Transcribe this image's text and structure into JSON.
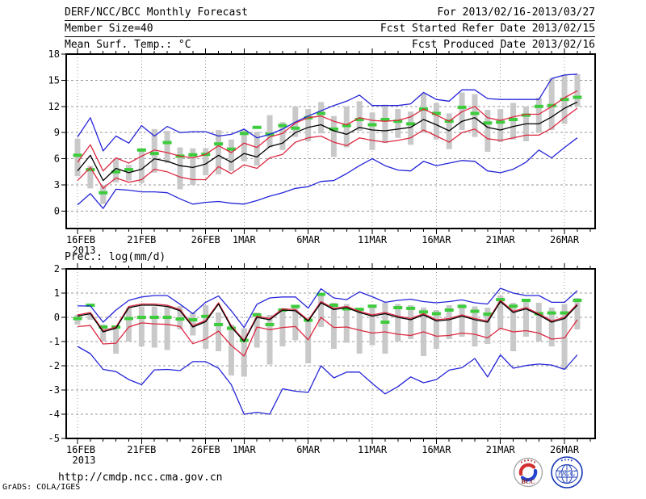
{
  "header": {
    "line1_left": "DERF/NCC/BCC Monthly Forecast",
    "line1_right": "For 2013/02/16-2013/03/27",
    "line2_left": "Member Size=40",
    "line2_right": "Fcst Started Refer Date 2013/02/15",
    "line3_left": "Mean Surf. Temp.: °C",
    "line3_right": "Fcst Produced Date 2013/02/16"
  },
  "footer": {
    "url": "http://cmdp.ncc.cma.gov.cn",
    "credit": "GrADS: COLA/IGES",
    "bcc_label": "BCC",
    "ncc_label": "NCC"
  },
  "colors": {
    "blue": "#2424d8",
    "red": "#dc2840",
    "black": "#000000",
    "green": "#3ccc3c",
    "bar_gray": "#c9c9c9",
    "grid": "#999999",
    "text": "#000000",
    "bcc_dark_red": "#8b1a1a",
    "ncc_blue": "#1536b4"
  },
  "chart_data": [
    {
      "type": "line",
      "title": "Mean Surf. Temp.: °C",
      "ylabel": "°C",
      "ylim": [
        -2,
        18
      ],
      "yticks": [
        0,
        3,
        6,
        9,
        12,
        15,
        18
      ],
      "grid": true,
      "legend_position": "none",
      "n_points": 40,
      "x_tick_labels": [
        "16FEB",
        "21FEB",
        "26FEB",
        "1MAR",
        "6MAR",
        "11MAR",
        "16MAR",
        "21MAR",
        "26MAR"
      ],
      "x_tick_days": [
        0,
        5,
        10,
        13,
        18,
        23,
        28,
        33,
        38
      ],
      "x_year_label": "2013",
      "series": [
        {
          "name": "ensemble_max",
          "color": "blue",
          "values": [
            8.5,
            10.7,
            6.9,
            8.6,
            7.8,
            9.8,
            8.6,
            9.7,
            9.0,
            9.1,
            9.1,
            8.6,
            8.8,
            9.4,
            8.4,
            8.8,
            9.4,
            10.2,
            10.9,
            11.5,
            12.1,
            12.6,
            13.3,
            12.1,
            12.1,
            12.1,
            12.3,
            13.6,
            12.8,
            12.6,
            13.9,
            13.9,
            12.9,
            12.8,
            12.8,
            12.8,
            12.8,
            15.2,
            15.6,
            15.7
          ]
        },
        {
          "name": "ensemble_min",
          "color": "blue",
          "values": [
            0.7,
            2.0,
            0.3,
            2.5,
            2.4,
            2.2,
            2.2,
            2.1,
            1.4,
            0.8,
            1.0,
            1.1,
            0.9,
            0.8,
            1.2,
            1.7,
            2.1,
            2.6,
            2.8,
            3.4,
            3.5,
            4.3,
            5.2,
            6.0,
            5.2,
            4.7,
            4.6,
            5.7,
            5.2,
            5.5,
            5.8,
            5.7,
            4.6,
            4.4,
            4.8,
            5.6,
            7.0,
            6.1,
            7.3,
            8.4
          ]
        },
        {
          "name": "upper_spread",
          "color": "red",
          "values": [
            5.6,
            7.6,
            4.6,
            6.1,
            5.5,
            6.3,
            7.0,
            6.7,
            6.3,
            6.1,
            6.5,
            7.5,
            6.7,
            7.8,
            7.3,
            8.5,
            8.9,
            10.1,
            10.7,
            10.9,
            10.3,
            9.9,
            10.7,
            10.4,
            10.3,
            10.4,
            10.8,
            11.7,
            11.0,
            10.3,
            11.4,
            12.0,
            10.7,
            10.4,
            10.8,
            11.1,
            11.1,
            12.0,
            13.0,
            13.8
          ]
        },
        {
          "name": "lower_spread",
          "color": "red",
          "values": [
            3.5,
            5.0,
            2.6,
            3.8,
            3.3,
            3.6,
            4.8,
            4.5,
            3.9,
            3.6,
            3.6,
            5.1,
            4.3,
            5.3,
            4.9,
            6.1,
            6.5,
            7.9,
            8.4,
            8.6,
            7.9,
            7.5,
            8.4,
            8.1,
            7.9,
            8.1,
            8.4,
            9.3,
            8.6,
            7.9,
            9.0,
            9.4,
            8.3,
            8.1,
            8.4,
            8.7,
            8.7,
            9.5,
            10.7,
            11.8
          ]
        },
        {
          "name": "ensemble_mean",
          "color": "black",
          "values": [
            4.6,
            6.4,
            3.5,
            4.9,
            4.4,
            4.8,
            6.0,
            5.7,
            5.2,
            5.0,
            5.4,
            6.4,
            5.6,
            6.6,
            6.2,
            7.4,
            7.8,
            9.0,
            9.6,
            9.9,
            9.2,
            8.8,
            9.6,
            9.3,
            9.2,
            9.4,
            9.6,
            10.5,
            9.9,
            9.2,
            10.3,
            10.7,
            9.6,
            9.3,
            9.7,
            10.0,
            10.0,
            10.8,
            11.8,
            12.5
          ]
        }
      ],
      "green_dashes": {
        "name": "reference_marks",
        "values": [
          6.4,
          4.75,
          2.1,
          4.5,
          4.75,
          7.0,
          6.6,
          7.85,
          6.3,
          6.45,
          6.5,
          7.7,
          7.1,
          8.9,
          9.6,
          8.8,
          9.8,
          9.5,
          10.7,
          11.2,
          9.4,
          9.8,
          10.5,
          9.9,
          10.5,
          10.3,
          10.0,
          11.7,
          11.2,
          10.3,
          11.9,
          11.2,
          10.1,
          10.2,
          10.5,
          11.0,
          12.0,
          12.1,
          12.8,
          13.05
        ]
      },
      "range_bars": {
        "low": [
          4.0,
          2.6,
          0.8,
          3.3,
          3.5,
          3.2,
          4.4,
          5.5,
          2.5,
          3.0,
          4.1,
          4.2,
          4.6,
          5.7,
          5.2,
          7.3,
          7.0,
          8.5,
          8.0,
          8.9,
          6.2,
          7.3,
          9.2,
          7.0,
          7.8,
          8.4,
          7.6,
          9.0,
          8.2,
          7.1,
          9.3,
          8.5,
          6.8,
          7.9,
          8.2,
          8.0,
          9.0,
          9.3,
          10.0,
          12.0
        ],
        "high": [
          8.3,
          5.2,
          3.0,
          6.0,
          5.3,
          6.9,
          9.4,
          9.2,
          7.3,
          7.2,
          7.2,
          9.3,
          8.2,
          9.3,
          9.1,
          11.0,
          10.2,
          12.0,
          11.7,
          12.5,
          10.9,
          12.0,
          12.6,
          11.3,
          12.2,
          11.7,
          11.4,
          13.5,
          12.4,
          11.2,
          13.6,
          13.4,
          11.6,
          11.7,
          12.4,
          12.0,
          13.0,
          15.2,
          15.6,
          15.7
        ]
      }
    },
    {
      "type": "line",
      "title": "Prec.: log(mm/d)",
      "ylabel": "log(mm/d)",
      "ylim": [
        -5,
        2
      ],
      "yticks": [
        -5,
        -4,
        -3,
        -2,
        -1,
        0,
        1,
        2
      ],
      "grid": true,
      "legend_position": "none",
      "n_points": 40,
      "x_tick_labels": [
        "16FEB",
        "21FEB",
        "26FEB",
        "1MAR",
        "6MAR",
        "11MAR",
        "16MAR",
        "21MAR",
        "26MAR"
      ],
      "x_tick_days": [
        0,
        5,
        10,
        13,
        18,
        23,
        28,
        33,
        38
      ],
      "x_year_label": "2013",
      "series": [
        {
          "name": "ensemble_max",
          "color": "blue",
          "values": [
            0.47,
            0.47,
            -0.2,
            0.3,
            0.7,
            0.84,
            0.9,
            0.9,
            0.54,
            0.15,
            0.62,
            0.88,
            0.27,
            -0.42,
            0.54,
            0.8,
            0.84,
            0.84,
            0.38,
            1.18,
            0.8,
            0.73,
            1.05,
            0.85,
            0.62,
            0.7,
            0.75,
            0.65,
            0.6,
            0.65,
            0.72,
            0.6,
            0.55,
            1.2,
            1.0,
            0.9,
            0.9,
            0.62,
            0.62,
            1.1
          ]
        },
        {
          "name": "ensemble_min",
          "color": "blue",
          "values": [
            -1.2,
            -1.5,
            -2.15,
            -2.24,
            -2.57,
            -2.78,
            -2.17,
            -2.15,
            -2.2,
            -1.83,
            -1.83,
            -2.1,
            -2.78,
            -4.0,
            -3.92,
            -4.0,
            -2.95,
            -3.05,
            -3.1,
            -2.0,
            -2.5,
            -2.26,
            -2.26,
            -2.73,
            -3.16,
            -2.86,
            -2.46,
            -2.7,
            -2.57,
            -2.18,
            -2.08,
            -1.7,
            -2.46,
            -1.55,
            -2.1,
            -1.99,
            -1.93,
            -1.97,
            -2.15,
            -1.55
          ]
        },
        {
          "name": "upper_spread",
          "color": "red",
          "values": [
            0.1,
            0.2,
            -0.55,
            -0.4,
            0.45,
            0.55,
            0.55,
            0.5,
            0.32,
            -0.35,
            -0.13,
            0.6,
            -0.35,
            -0.95,
            0.05,
            -0.05,
            0.35,
            0.32,
            -0.11,
            0.65,
            0.37,
            0.45,
            0.25,
            0.1,
            0.2,
            0.05,
            -0.05,
            0.15,
            -0.1,
            -0.05,
            0.1,
            -0.05,
            -0.15,
            0.7,
            0.25,
            0.4,
            0.15,
            -0.15,
            0.0,
            0.55
          ]
        },
        {
          "name": "lower_spread",
          "color": "red",
          "values": [
            -0.38,
            -0.34,
            -1.1,
            -1.07,
            -0.4,
            -0.23,
            -0.27,
            -0.29,
            -0.38,
            -1.09,
            -0.9,
            -0.57,
            -1.16,
            -1.6,
            -0.4,
            -0.51,
            -0.42,
            -0.38,
            -0.93,
            0.0,
            -0.42,
            -0.4,
            -0.53,
            -0.65,
            -0.6,
            -0.7,
            -0.75,
            -0.6,
            -0.78,
            -0.75,
            -0.65,
            -0.7,
            -0.85,
            -0.45,
            -0.6,
            -0.55,
            -0.65,
            -0.9,
            -0.85,
            -0.1
          ]
        },
        {
          "name": "ensemble_mean",
          "color": "black",
          "values": [
            0.05,
            0.15,
            -0.6,
            -0.45,
            0.4,
            0.5,
            0.5,
            0.45,
            0.27,
            -0.4,
            -0.18,
            0.55,
            -0.4,
            -1.0,
            0.0,
            -0.1,
            0.3,
            0.27,
            -0.16,
            0.6,
            0.32,
            0.4,
            0.2,
            0.05,
            0.15,
            0.0,
            -0.1,
            0.1,
            -0.15,
            -0.1,
            0.05,
            -0.1,
            -0.2,
            0.65,
            0.2,
            0.35,
            0.1,
            -0.2,
            -0.05,
            0.5
          ]
        }
      ],
      "green_dashes": {
        "name": "reference_marks",
        "values": [
          -0.05,
          0.5,
          -0.4,
          -0.4,
          -0.05,
          0.0,
          0.0,
          0.0,
          -0.07,
          -0.1,
          0.04,
          -0.3,
          -0.45,
          -0.95,
          0.1,
          -0.3,
          0.3,
          0.45,
          -0.12,
          0.95,
          0.5,
          0.35,
          0.33,
          0.46,
          -0.2,
          0.4,
          0.37,
          0.22,
          0.15,
          0.3,
          0.45,
          0.25,
          0.13,
          0.73,
          0.46,
          0.7,
          0.15,
          0.18,
          0.18,
          0.7
        ]
      },
      "range_bars": {
        "low": [
          -0.3,
          -0.1,
          -1.0,
          -1.5,
          -1.0,
          -1.2,
          -1.25,
          -1.35,
          -0.5,
          -0.75,
          -1.3,
          -1.4,
          -2.4,
          -2.45,
          -1.25,
          -1.95,
          -1.2,
          -0.95,
          -1.9,
          -0.4,
          -1.3,
          -1.05,
          -1.5,
          -1.15,
          -1.5,
          -1.0,
          -0.9,
          -1.6,
          -1.3,
          -0.9,
          -0.8,
          -1.2,
          -1.1,
          -0.5,
          -1.4,
          -0.8,
          -1.0,
          -1.2,
          -2.15,
          -0.5
        ],
        "high": [
          0.1,
          0.15,
          -0.3,
          -0.4,
          0.4,
          0.45,
          0.45,
          0.45,
          0.47,
          0.2,
          0.5,
          0.2,
          -0.3,
          -0.45,
          0.2,
          0.1,
          0.38,
          0.5,
          -0.05,
          0.95,
          0.6,
          0.55,
          0.3,
          0.5,
          0.6,
          0.55,
          0.5,
          0.4,
          0.3,
          0.5,
          0.55,
          0.45,
          0.4,
          0.9,
          0.6,
          0.7,
          0.6,
          0.4,
          0.55,
          0.8
        ]
      }
    }
  ]
}
